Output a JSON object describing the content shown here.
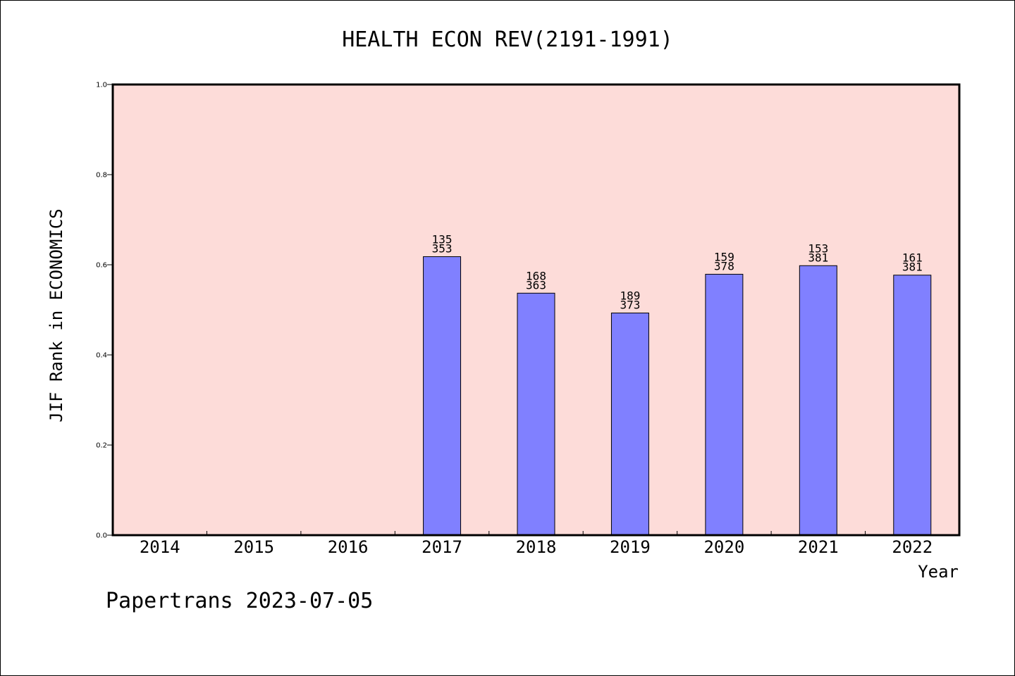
{
  "chart_data": {
    "type": "bar",
    "title": "HEALTH ECON REV(2191-1991)",
    "xlabel": "Year",
    "ylabel": "JIF Rank in ECONOMICS",
    "ylim": [
      0.0,
      1.0
    ],
    "yticks": [
      "0.0",
      "0.2",
      "0.4",
      "0.6",
      "0.8",
      "1.0"
    ],
    "categories": [
      "2014",
      "2015",
      "2016",
      "2017",
      "2018",
      "2019",
      "2020",
      "2021",
      "2022"
    ],
    "values": [
      null,
      null,
      null,
      0.618,
      0.537,
      0.493,
      0.579,
      0.598,
      0.577
    ],
    "labels": [
      null,
      null,
      null,
      [
        "135",
        "353"
      ],
      [
        "168",
        "363"
      ],
      [
        "189",
        "373"
      ],
      [
        "159",
        "378"
      ],
      [
        "153",
        "381"
      ],
      [
        "161",
        "381"
      ]
    ],
    "grid": false,
    "colors": {
      "background": "#fddcd9",
      "bar": "#8080ff",
      "bar_edge": "#000000"
    }
  },
  "footer": "Papertrans 2023-07-05"
}
